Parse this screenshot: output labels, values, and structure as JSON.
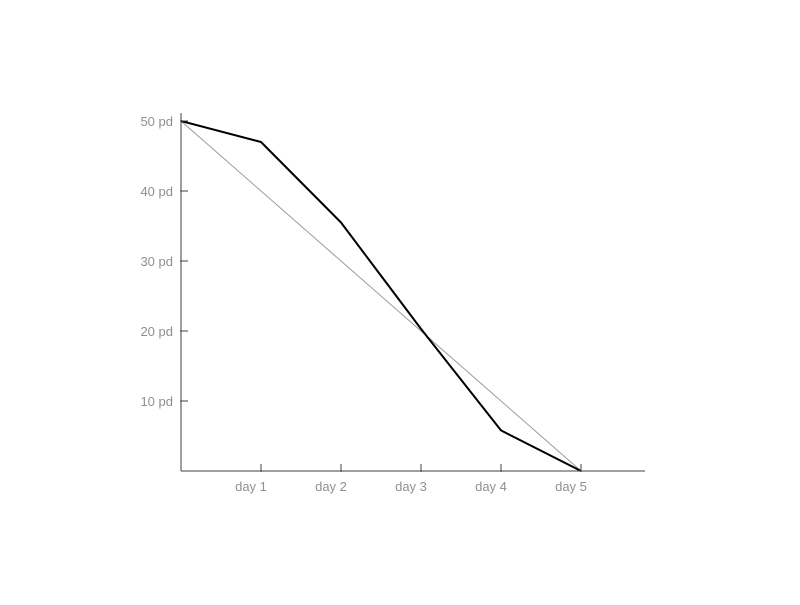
{
  "colors": {
    "axis": "#404040",
    "tick_label": "#8f8f8f",
    "actual_line": "#000000",
    "ideal_line": "#9a9a9a",
    "background": "#ffffff"
  },
  "chart_data": {
    "type": "line",
    "title": "",
    "xlabel": "",
    "ylabel": "",
    "x_tick_labels": [
      "day 1",
      "day 2",
      "day 3",
      "day 4",
      "day 5"
    ],
    "y_tick_labels": [
      "10 pd",
      "20 pd",
      "30 pd",
      "40 pd",
      "50 pd"
    ],
    "y_tick_values": [
      10,
      20,
      30,
      40,
      50
    ],
    "xlim": [
      0,
      5.8
    ],
    "ylim": [
      0,
      50
    ],
    "grid": false,
    "legend": "none",
    "series": [
      {
        "role": "actual",
        "x": [
          0,
          1,
          2,
          3,
          4,
          5
        ],
        "y": [
          50,
          47,
          35.5,
          20.3,
          5.8,
          0
        ]
      },
      {
        "role": "ideal",
        "x": [
          0,
          5
        ],
        "y": [
          50,
          0
        ]
      }
    ]
  }
}
